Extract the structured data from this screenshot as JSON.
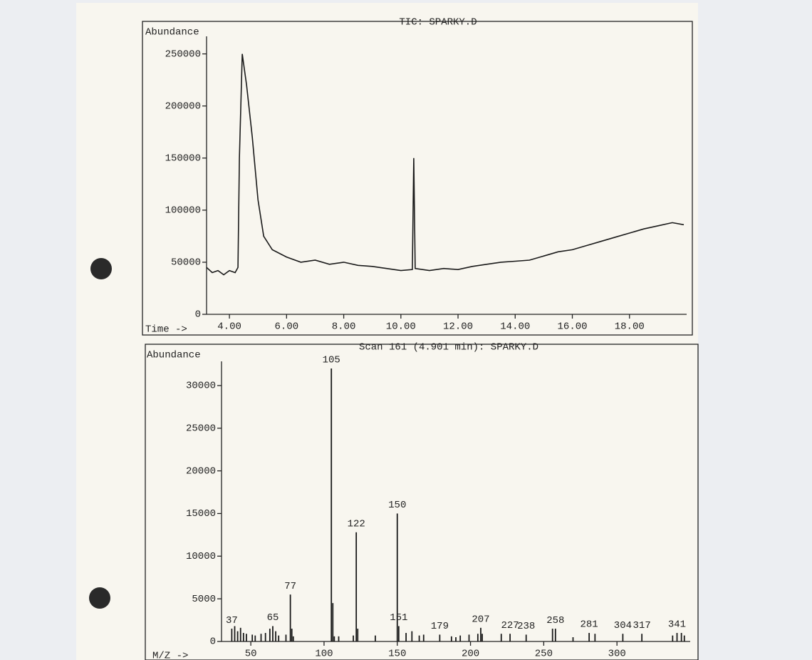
{
  "chart_data": [
    {
      "type": "line",
      "title": "TIC: SPARKY.D",
      "y_label": "Abundance",
      "x_label": "Time ->",
      "color": "#1a1a1a",
      "x": [
        3.2,
        3.4,
        3.6,
        3.8,
        4.0,
        4.2,
        4.3,
        4.35,
        4.45,
        4.6,
        4.8,
        5.0,
        5.2,
        5.5,
        6.0,
        6.5,
        7.0,
        7.5,
        8.0,
        8.5,
        9.0,
        9.5,
        10.0,
        10.4,
        10.45,
        10.5,
        11.0,
        11.5,
        12.0,
        12.5,
        13.0,
        13.5,
        14.0,
        14.5,
        15.0,
        15.5,
        16.0,
        16.5,
        17.0,
        17.5,
        18.0,
        18.5,
        19.0,
        19.5,
        19.9
      ],
      "values": [
        45000,
        40000,
        42000,
        38000,
        42000,
        40000,
        45000,
        150000,
        250000,
        220000,
        170000,
        110000,
        75000,
        62000,
        55000,
        50000,
        52000,
        48000,
        50000,
        47000,
        46000,
        44000,
        42000,
        43000,
        150000,
        44000,
        42000,
        44000,
        43000,
        46000,
        48000,
        50000,
        51000,
        52000,
        56000,
        60000,
        62000,
        66000,
        70000,
        74000,
        78000,
        82000,
        85000,
        88000,
        86000
      ],
      "xlim": [
        3.2,
        20
      ],
      "ylim": [
        0,
        260000
      ],
      "xticks": [
        {
          "value": 4,
          "label": "4.00"
        },
        {
          "value": 6,
          "label": "6.00"
        },
        {
          "value": 8,
          "label": "8.00"
        },
        {
          "value": 10,
          "label": "10.00"
        },
        {
          "value": 12,
          "label": "12.00"
        },
        {
          "value": 14,
          "label": "14.00"
        },
        {
          "value": 16,
          "label": "16.00"
        },
        {
          "value": 18,
          "label": "18.00"
        }
      ],
      "yticks": [
        0,
        50000,
        100000,
        150000,
        200000,
        250000
      ]
    },
    {
      "type": "bar",
      "title": "Scan 161 (4.901 min): SPARKY.D",
      "y_label": "Abundance",
      "x_label": "M/Z ->",
      "color": "#1a1a1a",
      "x": [
        37,
        39,
        41,
        43,
        45,
        47,
        51,
        53,
        57,
        60,
        63,
        65,
        67,
        69,
        74,
        77,
        78,
        79,
        105,
        106,
        107,
        110,
        120,
        122,
        123,
        135,
        150,
        151,
        156,
        160,
        165,
        168,
        179,
        187,
        190,
        193,
        199,
        205,
        207,
        208,
        221,
        227,
        238,
        256,
        258,
        270,
        281,
        285,
        304,
        317,
        338,
        341,
        344,
        346
      ],
      "values": [
        1500,
        1800,
        1200,
        1600,
        1000,
        900,
        800,
        700,
        900,
        1000,
        1500,
        1800,
        1200,
        700,
        800,
        5500,
        1500,
        600,
        32000,
        4500,
        600,
        600,
        700,
        12800,
        1500,
        700,
        15000,
        1800,
        1000,
        1200,
        700,
        800,
        800,
        600,
        500,
        700,
        800,
        900,
        1600,
        900,
        900,
        900,
        800,
        1500,
        1500,
        500,
        1000,
        900,
        900,
        900,
        700,
        1000,
        1000,
        700
      ],
      "annotations": [
        "37",
        "65",
        "77",
        "105",
        "122",
        "150",
        "151",
        "179",
        "207",
        "227",
        "238",
        "258",
        "281",
        "304",
        "317",
        "341"
      ],
      "xlim": [
        30,
        350
      ],
      "ylim": [
        0,
        32000
      ],
      "xticks": [
        50,
        100,
        150,
        200,
        250,
        300
      ],
      "yticks": [
        0,
        5000,
        10000,
        15000,
        20000,
        25000,
        30000
      ]
    }
  ]
}
